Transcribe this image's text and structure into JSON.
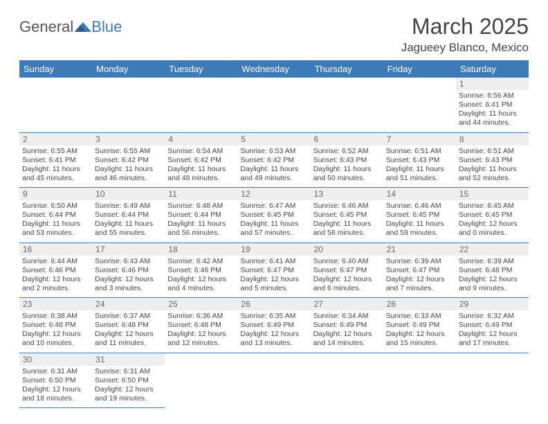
{
  "logo": {
    "part1": "General",
    "part2": "Blue"
  },
  "title": "March 2025",
  "location": "Jagueey Blanco, Mexico",
  "colors": {
    "header_bg": "#3d7ab8",
    "header_text": "#ffffff",
    "rule": "#3d7ab8",
    "daynum_bg": "#eeeeee",
    "body_text": "#444444"
  },
  "typography": {
    "title_fontsize": 32,
    "location_fontsize": 17,
    "header_fontsize": 13,
    "cell_fontsize": 10.5
  },
  "dayHeaders": [
    "Sunday",
    "Monday",
    "Tuesday",
    "Wednesday",
    "Thursday",
    "Friday",
    "Saturday"
  ],
  "weeks": [
    [
      null,
      null,
      null,
      null,
      null,
      null,
      {
        "n": "1",
        "sunrise": "Sunrise: 6:56 AM",
        "sunset": "Sunset: 6:41 PM",
        "daylight": "Daylight: 11 hours and 44 minutes."
      }
    ],
    [
      {
        "n": "2",
        "sunrise": "Sunrise: 6:55 AM",
        "sunset": "Sunset: 6:41 PM",
        "daylight": "Daylight: 11 hours and 45 minutes."
      },
      {
        "n": "3",
        "sunrise": "Sunrise: 6:55 AM",
        "sunset": "Sunset: 6:42 PM",
        "daylight": "Daylight: 11 hours and 46 minutes."
      },
      {
        "n": "4",
        "sunrise": "Sunrise: 6:54 AM",
        "sunset": "Sunset: 6:42 PM",
        "daylight": "Daylight: 11 hours and 48 minutes."
      },
      {
        "n": "5",
        "sunrise": "Sunrise: 6:53 AM",
        "sunset": "Sunset: 6:42 PM",
        "daylight": "Daylight: 11 hours and 49 minutes."
      },
      {
        "n": "6",
        "sunrise": "Sunrise: 6:52 AM",
        "sunset": "Sunset: 6:43 PM",
        "daylight": "Daylight: 11 hours and 50 minutes."
      },
      {
        "n": "7",
        "sunrise": "Sunrise: 6:51 AM",
        "sunset": "Sunset: 6:43 PM",
        "daylight": "Daylight: 11 hours and 51 minutes."
      },
      {
        "n": "8",
        "sunrise": "Sunrise: 6:51 AM",
        "sunset": "Sunset: 6:43 PM",
        "daylight": "Daylight: 11 hours and 52 minutes."
      }
    ],
    [
      {
        "n": "9",
        "sunrise": "Sunrise: 6:50 AM",
        "sunset": "Sunset: 6:44 PM",
        "daylight": "Daylight: 11 hours and 53 minutes."
      },
      {
        "n": "10",
        "sunrise": "Sunrise: 6:49 AM",
        "sunset": "Sunset: 6:44 PM",
        "daylight": "Daylight: 11 hours and 55 minutes."
      },
      {
        "n": "11",
        "sunrise": "Sunrise: 6:48 AM",
        "sunset": "Sunset: 6:44 PM",
        "daylight": "Daylight: 11 hours and 56 minutes."
      },
      {
        "n": "12",
        "sunrise": "Sunrise: 6:47 AM",
        "sunset": "Sunset: 6:45 PM",
        "daylight": "Daylight: 11 hours and 57 minutes."
      },
      {
        "n": "13",
        "sunrise": "Sunrise: 6:46 AM",
        "sunset": "Sunset: 6:45 PM",
        "daylight": "Daylight: 11 hours and 58 minutes."
      },
      {
        "n": "14",
        "sunrise": "Sunrise: 6:46 AM",
        "sunset": "Sunset: 6:45 PM",
        "daylight": "Daylight: 11 hours and 59 minutes."
      },
      {
        "n": "15",
        "sunrise": "Sunrise: 6:45 AM",
        "sunset": "Sunset: 6:45 PM",
        "daylight": "Daylight: 12 hours and 0 minutes."
      }
    ],
    [
      {
        "n": "16",
        "sunrise": "Sunrise: 6:44 AM",
        "sunset": "Sunset: 6:46 PM",
        "daylight": "Daylight: 12 hours and 2 minutes."
      },
      {
        "n": "17",
        "sunrise": "Sunrise: 6:43 AM",
        "sunset": "Sunset: 6:46 PM",
        "daylight": "Daylight: 12 hours and 3 minutes."
      },
      {
        "n": "18",
        "sunrise": "Sunrise: 6:42 AM",
        "sunset": "Sunset: 6:46 PM",
        "daylight": "Daylight: 12 hours and 4 minutes."
      },
      {
        "n": "19",
        "sunrise": "Sunrise: 6:41 AM",
        "sunset": "Sunset: 6:47 PM",
        "daylight": "Daylight: 12 hours and 5 minutes."
      },
      {
        "n": "20",
        "sunrise": "Sunrise: 6:40 AM",
        "sunset": "Sunset: 6:47 PM",
        "daylight": "Daylight: 12 hours and 6 minutes."
      },
      {
        "n": "21",
        "sunrise": "Sunrise: 6:39 AM",
        "sunset": "Sunset: 6:47 PM",
        "daylight": "Daylight: 12 hours and 7 minutes."
      },
      {
        "n": "22",
        "sunrise": "Sunrise: 6:39 AM",
        "sunset": "Sunset: 6:48 PM",
        "daylight": "Daylight: 12 hours and 9 minutes."
      }
    ],
    [
      {
        "n": "23",
        "sunrise": "Sunrise: 6:38 AM",
        "sunset": "Sunset: 6:48 PM",
        "daylight": "Daylight: 12 hours and 10 minutes."
      },
      {
        "n": "24",
        "sunrise": "Sunrise: 6:37 AM",
        "sunset": "Sunset: 6:48 PM",
        "daylight": "Daylight: 12 hours and 11 minutes."
      },
      {
        "n": "25",
        "sunrise": "Sunrise: 6:36 AM",
        "sunset": "Sunset: 6:48 PM",
        "daylight": "Daylight: 12 hours and 12 minutes."
      },
      {
        "n": "26",
        "sunrise": "Sunrise: 6:35 AM",
        "sunset": "Sunset: 6:49 PM",
        "daylight": "Daylight: 12 hours and 13 minutes."
      },
      {
        "n": "27",
        "sunrise": "Sunrise: 6:34 AM",
        "sunset": "Sunset: 6:49 PM",
        "daylight": "Daylight: 12 hours and 14 minutes."
      },
      {
        "n": "28",
        "sunrise": "Sunrise: 6:33 AM",
        "sunset": "Sunset: 6:49 PM",
        "daylight": "Daylight: 12 hours and 15 minutes."
      },
      {
        "n": "29",
        "sunrise": "Sunrise: 6:32 AM",
        "sunset": "Sunset: 6:49 PM",
        "daylight": "Daylight: 12 hours and 17 minutes."
      }
    ],
    [
      {
        "n": "30",
        "sunrise": "Sunrise: 6:31 AM",
        "sunset": "Sunset: 6:50 PM",
        "daylight": "Daylight: 12 hours and 18 minutes."
      },
      {
        "n": "31",
        "sunrise": "Sunrise: 6:31 AM",
        "sunset": "Sunset: 6:50 PM",
        "daylight": "Daylight: 12 hours and 19 minutes."
      },
      null,
      null,
      null,
      null,
      null
    ]
  ]
}
